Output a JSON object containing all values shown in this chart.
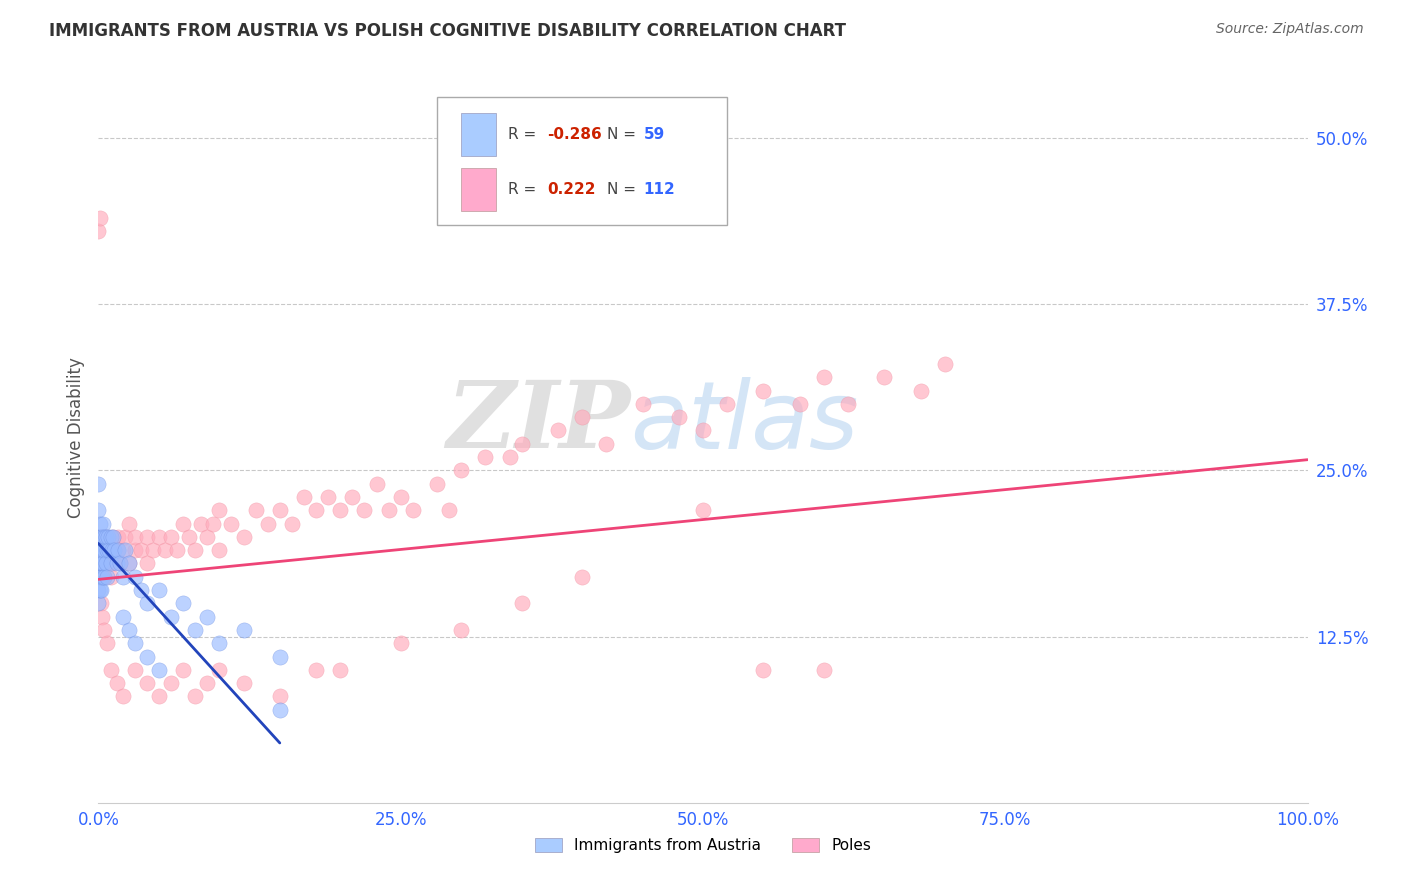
{
  "title": "IMMIGRANTS FROM AUSTRIA VS POLISH COGNITIVE DISABILITY CORRELATION CHART",
  "source_text": "Source: ZipAtlas.com",
  "ylabel": "Cognitive Disability",
  "watermark_zip": "ZIP",
  "watermark_atlas": "atlas",
  "series": [
    {
      "name": "Immigrants from Austria",
      "R": -0.286,
      "N": 59,
      "color": "#99bbff",
      "edge_color": "#6688dd",
      "line_color": "#2244bb",
      "x": [
        0.0,
        0.0,
        0.0,
        0.0,
        0.0,
        0.0,
        0.0,
        0.0,
        0.001,
        0.001,
        0.001,
        0.001,
        0.001,
        0.002,
        0.002,
        0.002,
        0.002,
        0.003,
        0.003,
        0.003,
        0.004,
        0.004,
        0.005,
        0.005,
        0.005,
        0.006,
        0.006,
        0.007,
        0.007,
        0.008,
        0.009,
        0.01,
        0.01,
        0.011,
        0.012,
        0.013,
        0.015,
        0.016,
        0.018,
        0.02,
        0.022,
        0.025,
        0.03,
        0.035,
        0.04,
        0.05,
        0.06,
        0.07,
        0.08,
        0.09,
        0.1,
        0.12,
        0.15,
        0.02,
        0.025,
        0.03,
        0.04,
        0.05,
        0.15
      ],
      "y": [
        0.22,
        0.2,
        0.19,
        0.18,
        0.17,
        0.16,
        0.15,
        0.24,
        0.21,
        0.19,
        0.18,
        0.17,
        0.16,
        0.2,
        0.19,
        0.18,
        0.16,
        0.2,
        0.19,
        0.17,
        0.21,
        0.18,
        0.2,
        0.19,
        0.17,
        0.2,
        0.18,
        0.19,
        0.17,
        0.2,
        0.19,
        0.2,
        0.18,
        0.19,
        0.2,
        0.19,
        0.18,
        0.19,
        0.18,
        0.17,
        0.19,
        0.18,
        0.17,
        0.16,
        0.15,
        0.16,
        0.14,
        0.15,
        0.13,
        0.14,
        0.12,
        0.13,
        0.11,
        0.14,
        0.13,
        0.12,
        0.11,
        0.1,
        0.07
      ],
      "trend_x": [
        0.0,
        0.15
      ],
      "trend_y": [
        0.195,
        0.045
      ]
    },
    {
      "name": "Poles",
      "R": 0.222,
      "N": 112,
      "color": "#ffaabb",
      "edge_color": "#ee8899",
      "line_color": "#ee4477",
      "x": [
        0.0,
        0.0,
        0.0,
        0.0,
        0.001,
        0.001,
        0.001,
        0.002,
        0.002,
        0.003,
        0.003,
        0.004,
        0.004,
        0.005,
        0.005,
        0.006,
        0.007,
        0.008,
        0.009,
        0.01,
        0.01,
        0.012,
        0.013,
        0.015,
        0.016,
        0.018,
        0.02,
        0.022,
        0.025,
        0.025,
        0.03,
        0.03,
        0.035,
        0.04,
        0.04,
        0.045,
        0.05,
        0.055,
        0.06,
        0.065,
        0.07,
        0.075,
        0.08,
        0.085,
        0.09,
        0.095,
        0.1,
        0.1,
        0.11,
        0.12,
        0.13,
        0.14,
        0.15,
        0.16,
        0.17,
        0.18,
        0.19,
        0.2,
        0.21,
        0.22,
        0.23,
        0.24,
        0.25,
        0.26,
        0.28,
        0.29,
        0.3,
        0.32,
        0.34,
        0.35,
        0.38,
        0.4,
        0.42,
        0.45,
        0.48,
        0.5,
        0.52,
        0.55,
        0.58,
        0.6,
        0.62,
        0.65,
        0.68,
        0.7,
        0.0,
        0.001,
        0.002,
        0.003,
        0.005,
        0.007,
        0.01,
        0.015,
        0.02,
        0.03,
        0.04,
        0.05,
        0.06,
        0.07,
        0.08,
        0.09,
        0.1,
        0.12,
        0.15,
        0.18,
        0.2,
        0.25,
        0.3,
        0.35,
        0.4,
        0.5,
        0.55,
        0.6
      ],
      "y": [
        0.2,
        0.19,
        0.18,
        0.17,
        0.19,
        0.18,
        0.17,
        0.2,
        0.18,
        0.19,
        0.17,
        0.2,
        0.18,
        0.19,
        0.17,
        0.2,
        0.18,
        0.19,
        0.18,
        0.19,
        0.17,
        0.2,
        0.18,
        0.19,
        0.2,
        0.18,
        0.19,
        0.2,
        0.21,
        0.18,
        0.19,
        0.2,
        0.19,
        0.18,
        0.2,
        0.19,
        0.2,
        0.19,
        0.2,
        0.19,
        0.21,
        0.2,
        0.19,
        0.21,
        0.2,
        0.21,
        0.22,
        0.19,
        0.21,
        0.2,
        0.22,
        0.21,
        0.22,
        0.21,
        0.23,
        0.22,
        0.23,
        0.22,
        0.23,
        0.22,
        0.24,
        0.22,
        0.23,
        0.22,
        0.24,
        0.22,
        0.25,
        0.26,
        0.26,
        0.27,
        0.28,
        0.29,
        0.27,
        0.3,
        0.29,
        0.28,
        0.3,
        0.31,
        0.3,
        0.32,
        0.3,
        0.32,
        0.31,
        0.33,
        0.43,
        0.44,
        0.15,
        0.14,
        0.13,
        0.12,
        0.1,
        0.09,
        0.08,
        0.1,
        0.09,
        0.08,
        0.09,
        0.1,
        0.08,
        0.09,
        0.1,
        0.09,
        0.08,
        0.1,
        0.1,
        0.12,
        0.13,
        0.15,
        0.17,
        0.22,
        0.1,
        0.1
      ],
      "trend_x": [
        0.0,
        1.0
      ],
      "trend_y": [
        0.168,
        0.258
      ]
    }
  ],
  "xlim": [
    0.0,
    1.0
  ],
  "ylim": [
    0.0,
    0.55
  ],
  "yticks": [
    0.125,
    0.25,
    0.375,
    0.5
  ],
  "ytick_labels": [
    "12.5%",
    "25.0%",
    "37.5%",
    "50.0%"
  ],
  "xticks": [
    0.0,
    0.25,
    0.5,
    0.75,
    1.0
  ],
  "xtick_labels": [
    "0.0%",
    "25.0%",
    "50.0%",
    "75.0%",
    "100.0%"
  ],
  "bg_color": "#ffffff",
  "grid_color": "#bbbbbb",
  "legend_box_color_austria": "#aaccff",
  "legend_box_color_poles": "#ffaacc",
  "r_color": "#cc2200",
  "n_color": "#3366ff",
  "tick_color": "#3366ff",
  "title_color": "#333333",
  "source_color": "#666666",
  "ylabel_color": "#555555"
}
